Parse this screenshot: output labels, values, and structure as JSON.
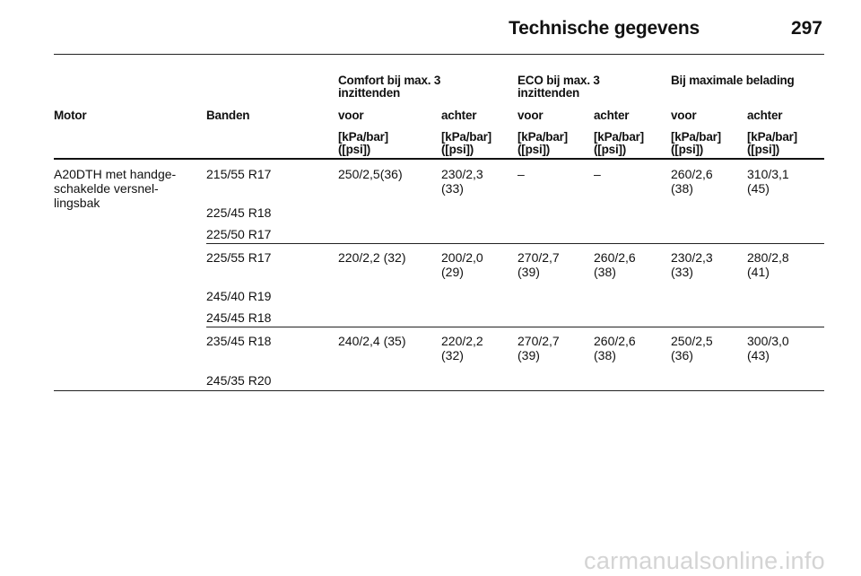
{
  "header": {
    "title": "Technische gegevens",
    "page": "297"
  },
  "table": {
    "group_headers": [
      "Comfort bij max. 3\ninzittenden",
      "ECO bij max. 3\ninzittenden",
      "Bij maximale belading"
    ],
    "col_headers": [
      "Motor",
      "Banden",
      "voor",
      "achter",
      "voor",
      "achter",
      "voor",
      "achter"
    ],
    "units": [
      "[kPa/bar]\n([psi])",
      "[kPa/bar]\n([psi])",
      "[kPa/bar]\n([psi])",
      "[kPa/bar]\n([psi])",
      "[kPa/bar]\n([psi])",
      "[kPa/bar]\n([psi])"
    ],
    "motor": "A20DTH met handge-\nschakelde versnel-\nlingsbak",
    "groups": [
      {
        "tyres": [
          "215/55 R17",
          "225/45 R18",
          "225/50 R17"
        ],
        "values": [
          "250/2,5(36)",
          "230/2,3\n(33)",
          "–",
          "–",
          "260/2,6\n(38)",
          "310/3,1\n(45)"
        ]
      },
      {
        "tyres": [
          "225/55 R17",
          "245/40 R19",
          "245/45 R18"
        ],
        "values": [
          "220/2,2 (32)",
          "200/2,0\n(29)",
          "270/2,7\n(39)",
          "260/2,6\n(38)",
          "230/2,3\n(33)",
          "280/2,8\n(41)"
        ]
      },
      {
        "tyres": [
          "235/45 R18",
          "245/35 R20"
        ],
        "values": [
          "240/2,4 (35)",
          "220/2,2\n(32)",
          "270/2,7\n(39)",
          "260/2,6\n(38)",
          "250/2,5\n(36)",
          "300/3,0\n(43)"
        ]
      }
    ]
  },
  "watermark": "carmanualsonline.info"
}
